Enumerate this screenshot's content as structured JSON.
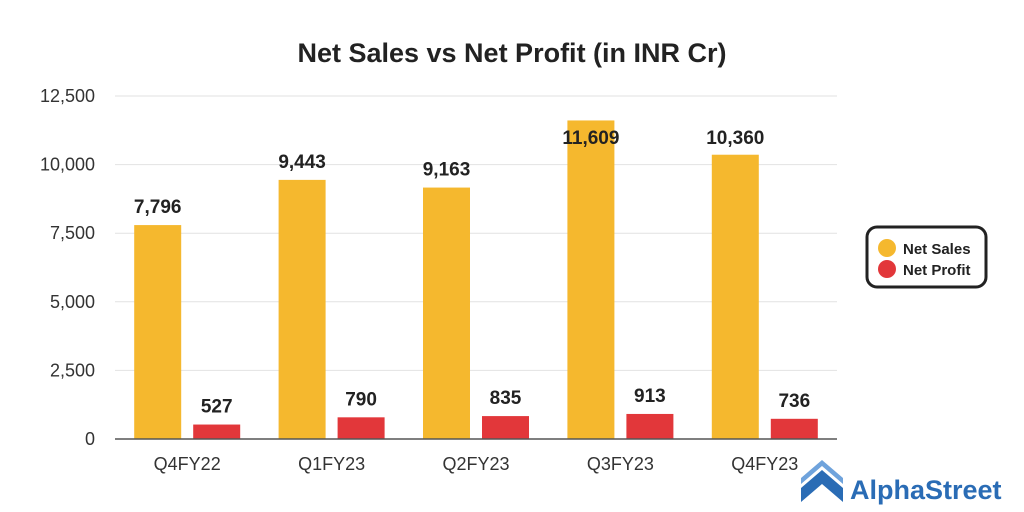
{
  "chart_data": {
    "type": "bar",
    "title": "Net Sales vs Net Profit (in INR Cr)",
    "categories": [
      "Q4FY22",
      "Q1FY23",
      "Q2FY23",
      "Q3FY23",
      "Q4FY23"
    ],
    "series": [
      {
        "name": "Net Sales",
        "values": [
          7796,
          9443,
          9163,
          11609,
          10360
        ],
        "labels": [
          "7,796",
          "9,443",
          "9,163",
          "11,609",
          "10,360"
        ],
        "color": "#F5B82E"
      },
      {
        "name": "Net Profit",
        "values": [
          527,
          790,
          835,
          913,
          736
        ],
        "labels": [
          "527",
          "790",
          "835",
          "913",
          "736"
        ],
        "color": "#E2373A"
      }
    ],
    "yticks": [
      0,
      2500,
      5000,
      7500,
      10000,
      12500
    ],
    "ytick_labels": [
      "0",
      "2,500",
      "5,000",
      "7,500",
      "10,000",
      "12,500"
    ],
    "ylim": [
      0,
      12500
    ],
    "xlabel": "",
    "ylabel": "",
    "grid": true,
    "legend_position": "right"
  },
  "branding": {
    "name": "AlphaStreet",
    "color": "#2a6cb5"
  }
}
